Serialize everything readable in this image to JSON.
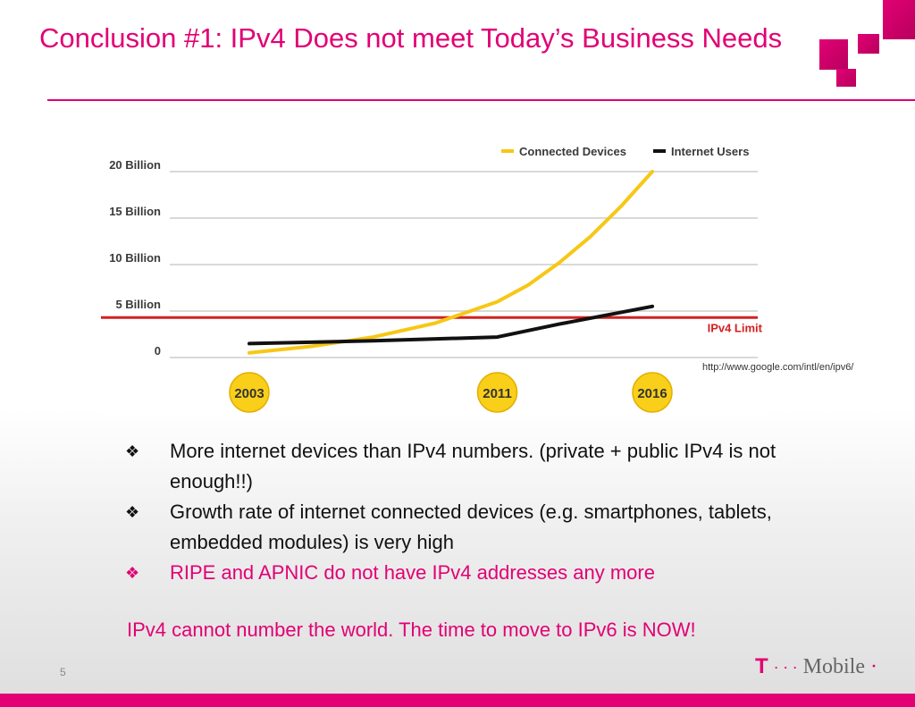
{
  "slide": {
    "title": "Conclusion #1: IPv4 Does not meet Today’s Business Needs",
    "source": "http://www.google.com/intl/en/ipv6/",
    "page_number": "5",
    "bullets": [
      {
        "text": "More internet devices than IPv4 numbers. (private + public IPv4 is not enough!!)",
        "color": "#111111"
      },
      {
        "text": "Growth rate of internet connected devices (e.g. smartphones, tablets, embedded modules) is very high",
        "color": "#111111"
      },
      {
        "text": "RIPE and APNIC do not have IPv4 addresses any more",
        "color": "#e20074"
      }
    ],
    "bullet_glyph": "❖",
    "conclusion": "IPv4 cannot number the world. The time to move to IPv6 is NOW!",
    "logo": {
      "t": "T",
      "dots": "· · ·",
      "text": "Mobile",
      "dot_end": "·"
    },
    "brand_color": "#e20074"
  },
  "chart_data": {
    "type": "line",
    "y_ticks": [
      "0",
      "5 Billion",
      "10 Billion",
      "15 Billion",
      "20 Billion"
    ],
    "ylim": [
      0,
      20
    ],
    "x_labels": [
      "2003",
      "2011",
      "2016"
    ],
    "series": [
      {
        "name": "Connected Devices",
        "color": "#f7c716",
        "points": [
          [
            2003,
            0.5
          ],
          [
            2005,
            1.2
          ],
          [
            2007,
            2.2
          ],
          [
            2009,
            3.7
          ],
          [
            2011,
            6.0
          ],
          [
            2012,
            7.8
          ],
          [
            2013,
            10.2
          ],
          [
            2014,
            13.0
          ],
          [
            2015,
            16.3
          ],
          [
            2016,
            20.0
          ]
        ]
      },
      {
        "name": "Internet Users",
        "color": "#111111",
        "points": [
          [
            2003,
            1.5
          ],
          [
            2007,
            1.8
          ],
          [
            2011,
            2.2
          ],
          [
            2013,
            3.6
          ],
          [
            2016,
            5.5
          ]
        ]
      }
    ],
    "reference_line": {
      "label": "IPv4 Limit",
      "value": 4.3,
      "color": "#d42020"
    },
    "legend": "top-right",
    "grid": true
  }
}
